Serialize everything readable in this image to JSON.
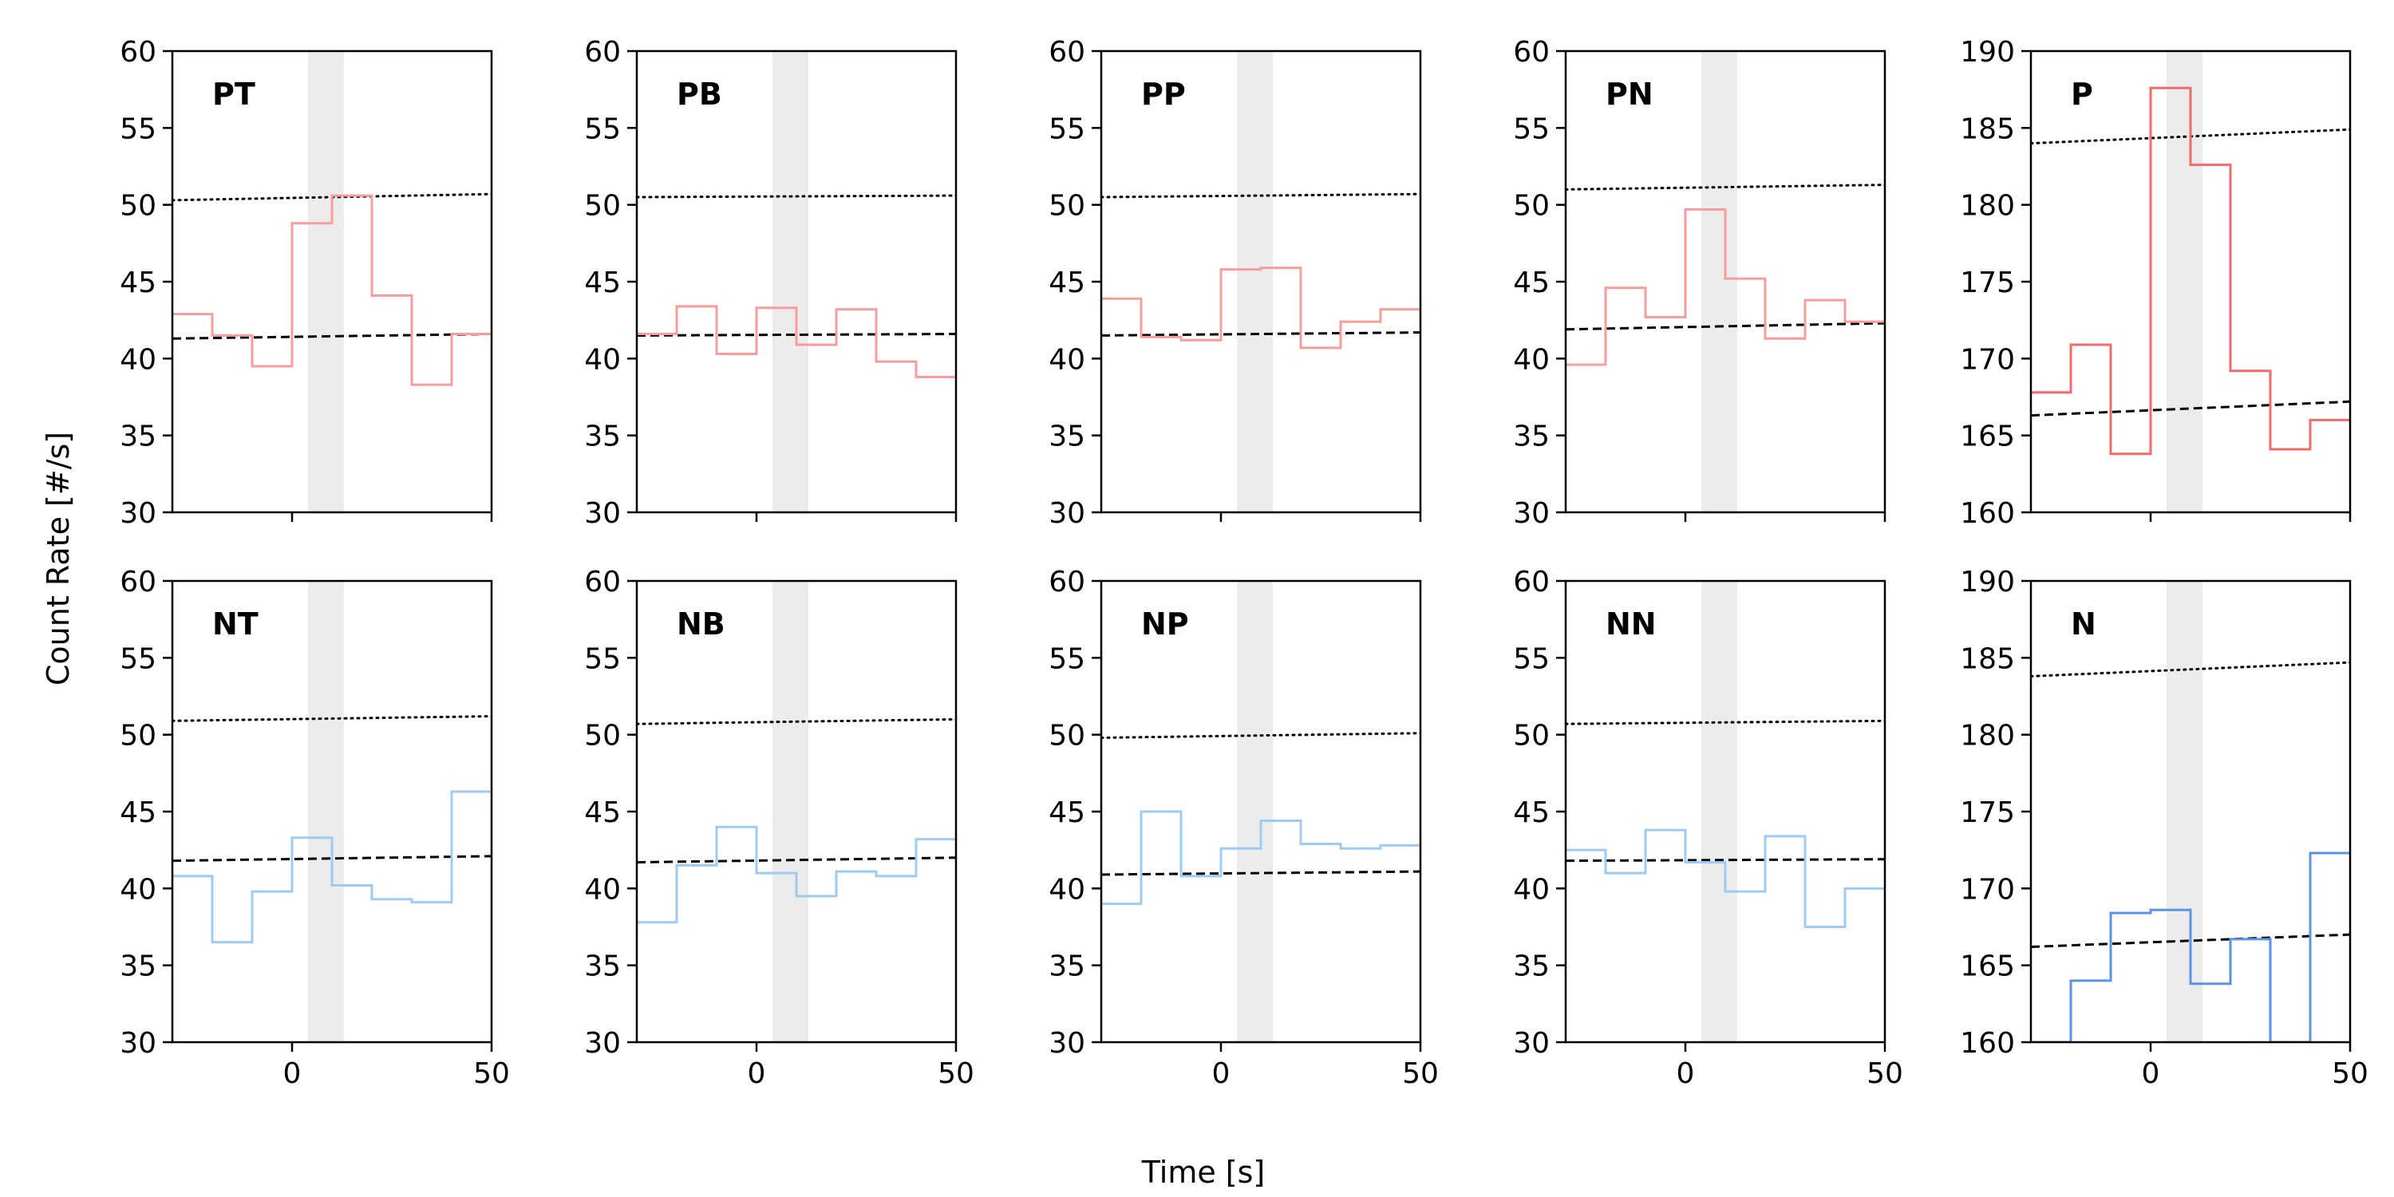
{
  "figure": {
    "ylabel": "Count Rate [#/s]",
    "xlabel": "Time [s]"
  },
  "chart_data": [
    {
      "type": "step",
      "label": "PT",
      "color": "#f89c9c",
      "xlim": [
        -30,
        50
      ],
      "ylim": [
        30,
        60
      ],
      "yticks": [
        30,
        35,
        40,
        45,
        50,
        55,
        60
      ],
      "xticks": [
        0,
        50
      ],
      "shade": [
        4,
        13
      ],
      "bin_edges": [
        -30,
        -20,
        -10,
        0,
        10,
        20,
        30,
        40,
        50
      ],
      "values": [
        42.9,
        41.5,
        39.5,
        48.8,
        50.6,
        44.1,
        38.3,
        41.6
      ],
      "dotted": [
        [
          -30,
          50.3
        ],
        [
          50,
          50.7
        ]
      ],
      "dashed": [
        [
          -30,
          41.3
        ],
        [
          50,
          41.6
        ]
      ]
    },
    {
      "type": "step",
      "label": "PB",
      "color": "#f89c9c",
      "xlim": [
        -30,
        50
      ],
      "ylim": [
        30,
        60
      ],
      "yticks": [
        30,
        35,
        40,
        45,
        50,
        55,
        60
      ],
      "xticks": [
        0,
        50
      ],
      "shade": [
        4,
        13
      ],
      "bin_edges": [
        -30,
        -20,
        -10,
        0,
        10,
        20,
        30,
        40,
        50
      ],
      "values": [
        41.6,
        43.4,
        40.3,
        43.3,
        40.9,
        43.2,
        39.8,
        38.8
      ],
      "dotted": [
        [
          -30,
          50.5
        ],
        [
          50,
          50.6
        ]
      ],
      "dashed": [
        [
          -30,
          41.5
        ],
        [
          50,
          41.6
        ]
      ]
    },
    {
      "type": "step",
      "label": "PP",
      "color": "#f89c9c",
      "xlim": [
        -30,
        50
      ],
      "ylim": [
        30,
        60
      ],
      "yticks": [
        30,
        35,
        40,
        45,
        50,
        55,
        60
      ],
      "xticks": [
        0,
        50
      ],
      "shade": [
        4,
        13
      ],
      "bin_edges": [
        -30,
        -20,
        -10,
        0,
        10,
        20,
        30,
        40,
        50
      ],
      "values": [
        43.9,
        41.4,
        41.2,
        45.8,
        45.9,
        40.7,
        42.4,
        43.2
      ],
      "dotted": [
        [
          -30,
          50.5
        ],
        [
          50,
          50.7
        ]
      ],
      "dashed": [
        [
          -30,
          41.5
        ],
        [
          50,
          41.7
        ]
      ]
    },
    {
      "type": "step",
      "label": "PN",
      "color": "#f89c9c",
      "xlim": [
        -30,
        50
      ],
      "ylim": [
        30,
        60
      ],
      "yticks": [
        30,
        35,
        40,
        45,
        50,
        55,
        60
      ],
      "xticks": [
        0,
        50
      ],
      "shade": [
        4,
        13
      ],
      "bin_edges": [
        -30,
        -20,
        -10,
        0,
        10,
        20,
        30,
        40,
        50
      ],
      "values": [
        39.6,
        44.6,
        42.7,
        49.7,
        45.2,
        41.3,
        43.8,
        42.4
      ],
      "dotted": [
        [
          -30,
          51.0
        ],
        [
          50,
          51.3
        ]
      ],
      "dashed": [
        [
          -30,
          41.9
        ],
        [
          50,
          42.3
        ]
      ]
    },
    {
      "type": "step",
      "label": "P",
      "color": "#f26a6a",
      "xlim": [
        -30,
        50
      ],
      "ylim": [
        160,
        190
      ],
      "yticks": [
        160,
        165,
        170,
        175,
        180,
        185,
        190
      ],
      "xticks": [
        0,
        50
      ],
      "shade": [
        4,
        13
      ],
      "bin_edges": [
        -30,
        -20,
        -10,
        0,
        10,
        20,
        30,
        40,
        50
      ],
      "values": [
        167.8,
        170.9,
        163.8,
        187.6,
        182.6,
        169.2,
        164.1,
        166.0
      ],
      "dotted": [
        [
          -30,
          184.0
        ],
        [
          50,
          184.9
        ]
      ],
      "dashed": [
        [
          -30,
          166.3
        ],
        [
          50,
          167.2
        ]
      ]
    },
    {
      "type": "step",
      "label": "NT",
      "color": "#9ccbf5",
      "xlim": [
        -30,
        50
      ],
      "ylim": [
        30,
        60
      ],
      "yticks": [
        30,
        35,
        40,
        45,
        50,
        55,
        60
      ],
      "xticks": [
        0,
        50
      ],
      "shade": [
        4,
        13
      ],
      "bin_edges": [
        -30,
        -20,
        -10,
        0,
        10,
        20,
        30,
        40,
        50
      ],
      "values": [
        40.8,
        36.5,
        39.8,
        43.3,
        40.2,
        39.3,
        39.1,
        46.3
      ],
      "dotted": [
        [
          -30,
          50.9
        ],
        [
          50,
          51.2
        ]
      ],
      "dashed": [
        [
          -30,
          41.8
        ],
        [
          50,
          42.1
        ]
      ]
    },
    {
      "type": "step",
      "label": "NB",
      "color": "#9ccbf5",
      "xlim": [
        -30,
        50
      ],
      "ylim": [
        30,
        60
      ],
      "yticks": [
        30,
        35,
        40,
        45,
        50,
        55,
        60
      ],
      "xticks": [
        0,
        50
      ],
      "shade": [
        4,
        13
      ],
      "bin_edges": [
        -30,
        -20,
        -10,
        0,
        10,
        20,
        30,
        40,
        50
      ],
      "values": [
        37.8,
        41.5,
        44.0,
        41.0,
        39.5,
        41.1,
        40.8,
        43.2
      ],
      "dotted": [
        [
          -30,
          50.7
        ],
        [
          50,
          51.0
        ]
      ],
      "dashed": [
        [
          -30,
          41.7
        ],
        [
          50,
          42.0
        ]
      ]
    },
    {
      "type": "step",
      "label": "NP",
      "color": "#9ccbf5",
      "xlim": [
        -30,
        50
      ],
      "ylim": [
        30,
        60
      ],
      "yticks": [
        30,
        35,
        40,
        45,
        50,
        55,
        60
      ],
      "xticks": [
        0,
        50
      ],
      "shade": [
        4,
        13
      ],
      "bin_edges": [
        -30,
        -20,
        -10,
        0,
        10,
        20,
        30,
        40,
        50
      ],
      "values": [
        39.0,
        45.0,
        40.8,
        42.6,
        44.4,
        42.9,
        42.6,
        42.8
      ],
      "dotted": [
        [
          -30,
          49.8
        ],
        [
          50,
          50.1
        ]
      ],
      "dashed": [
        [
          -30,
          40.9
        ],
        [
          50,
          41.1
        ]
      ]
    },
    {
      "type": "step",
      "label": "NN",
      "color": "#9ccbf5",
      "xlim": [
        -30,
        50
      ],
      "ylim": [
        30,
        60
      ],
      "yticks": [
        30,
        35,
        40,
        45,
        50,
        55,
        60
      ],
      "xticks": [
        0,
        50
      ],
      "shade": [
        4,
        13
      ],
      "bin_edges": [
        -30,
        -20,
        -10,
        0,
        10,
        20,
        30,
        40,
        50
      ],
      "values": [
        42.5,
        41.0,
        43.8,
        41.7,
        39.8,
        43.4,
        37.5,
        40.0
      ],
      "dotted": [
        [
          -30,
          50.7
        ],
        [
          50,
          50.9
        ]
      ],
      "dashed": [
        [
          -30,
          41.8
        ],
        [
          50,
          41.9
        ]
      ]
    },
    {
      "type": "step",
      "label": "N",
      "color": "#5a93e6",
      "xlim": [
        -30,
        50
      ],
      "ylim": [
        160,
        190
      ],
      "yticks": [
        160,
        165,
        170,
        175,
        180,
        185,
        190
      ],
      "xticks": [
        0,
        50
      ],
      "shade": [
        4,
        13
      ],
      "bin_edges": [
        -30,
        -20,
        -10,
        0,
        10,
        20,
        30,
        40,
        50
      ],
      "values": [
        160.0,
        164.0,
        168.4,
        168.6,
        163.8,
        166.7,
        160.0,
        172.3
      ],
      "dotted": [
        [
          -30,
          183.8
        ],
        [
          50,
          184.7
        ]
      ],
      "dashed": [
        [
          -30,
          166.2
        ],
        [
          50,
          167.0
        ]
      ]
    }
  ]
}
